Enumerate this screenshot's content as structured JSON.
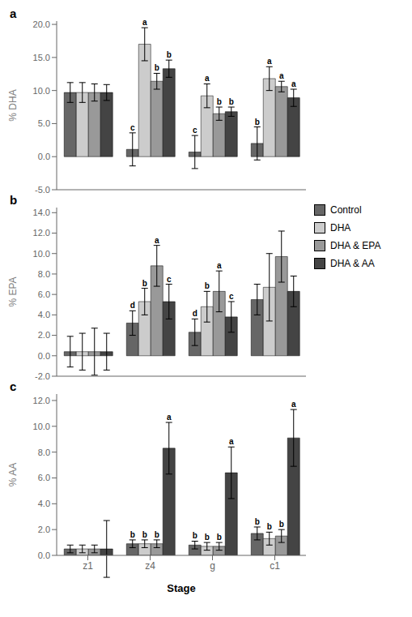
{
  "chart_data": [
    {
      "type": "bar",
      "title": "a",
      "ylabel": "% DHA",
      "tick_labels": "y",
      "categories": [
        "z1",
        "z4",
        "g",
        "c1"
      ],
      "ylim": [
        -5,
        20.5
      ],
      "yticks": [
        {
          "value": -5,
          "label": "-5.0"
        },
        {
          "value": 0,
          "label": "0.0"
        },
        {
          "value": 5,
          "label": "5.0"
        },
        {
          "value": 10,
          "label": "10.0"
        },
        {
          "value": 15,
          "label": "15.0"
        },
        {
          "value": 20,
          "label": "20.0"
        }
      ],
      "series": [
        {
          "name": "Control",
          "color": "#666666",
          "values": [
            9.7,
            1.1,
            0.7,
            2.0
          ],
          "errors": [
            1.5,
            2.5,
            2.5,
            2.5
          ],
          "sig_labels": [
            null,
            "c",
            "c",
            "b"
          ]
        },
        {
          "name": "DHA",
          "color": "#cccccc",
          "values": [
            9.7,
            17.0,
            9.2,
            11.8
          ],
          "errors": [
            1.5,
            2.5,
            1.8,
            1.8
          ],
          "sig_labels": [
            null,
            "a",
            "a",
            "a"
          ]
        },
        {
          "name": "DHA & EPA",
          "color": "#999999",
          "values": [
            9.7,
            11.4,
            6.5,
            10.6
          ],
          "errors": [
            1.3,
            1.2,
            1.0,
            0.8
          ],
          "sig_labels": [
            null,
            "b",
            "b",
            "a"
          ]
        },
        {
          "name": "DHA & AA",
          "color": "#444444",
          "values": [
            9.7,
            13.3,
            6.8,
            8.9
          ],
          "errors": [
            1.2,
            1.3,
            0.7,
            1.3
          ],
          "sig_labels": [
            null,
            "b",
            "b",
            "a"
          ]
        }
      ]
    },
    {
      "type": "bar",
      "title": "b",
      "ylabel": "% EPA",
      "tick_labels": "y",
      "legend": "right",
      "categories": [
        "z1",
        "z4",
        "g",
        "c1"
      ],
      "ylim": [
        -2,
        14.5
      ],
      "yticks": [
        {
          "value": -2,
          "label": "-2.0"
        },
        {
          "value": 0,
          "label": "0.0"
        },
        {
          "value": 2,
          "label": "2.0"
        },
        {
          "value": 4,
          "label": "4.0"
        },
        {
          "value": 6,
          "label": "6.0"
        },
        {
          "value": 8,
          "label": "8.0"
        },
        {
          "value": 10,
          "label": "10.0"
        },
        {
          "value": 12,
          "label": "12.0"
        },
        {
          "value": 14,
          "label": "14.0"
        }
      ],
      "series": [
        {
          "name": "Control",
          "color": "#666666",
          "values": [
            0.4,
            3.2,
            2.3,
            5.5
          ],
          "errors": [
            1.5,
            1.2,
            1.3,
            1.5
          ],
          "sig_labels": [
            null,
            "d",
            "d",
            null
          ]
        },
        {
          "name": "DHA",
          "color": "#cccccc",
          "values": [
            0.4,
            5.3,
            4.8,
            6.7
          ],
          "errors": [
            1.8,
            1.3,
            1.5,
            3.3
          ],
          "sig_labels": [
            null,
            "b",
            "b",
            null
          ]
        },
        {
          "name": "DHA & EPA",
          "color": "#999999",
          "values": [
            0.4,
            8.8,
            6.3,
            9.7
          ],
          "errors": [
            2.3,
            2.0,
            2.0,
            2.5
          ],
          "sig_labels": [
            null,
            "a",
            "a",
            null
          ]
        },
        {
          "name": "DHA & AA",
          "color": "#444444",
          "values": [
            0.4,
            5.3,
            3.8,
            6.3
          ],
          "errors": [
            1.8,
            1.7,
            1.5,
            1.5
          ],
          "sig_labels": [
            null,
            "c",
            "c",
            null
          ]
        }
      ]
    },
    {
      "type": "bar",
      "title": "c",
      "ylabel": "% AA",
      "xlabel": "Stage",
      "categories": [
        "z1",
        "z4",
        "g",
        "c1"
      ],
      "ylim": [
        0,
        12.5
      ],
      "yticks": [
        {
          "value": 0,
          "label": "0.0"
        },
        {
          "value": 2,
          "label": "2.0"
        },
        {
          "value": 4,
          "label": "4.0"
        },
        {
          "value": 6,
          "label": "6.0"
        },
        {
          "value": 8,
          "label": "8.0"
        },
        {
          "value": 10,
          "label": "10.0"
        },
        {
          "value": 12,
          "label": "12.0"
        }
      ],
      "series": [
        {
          "name": "Control",
          "color": "#666666",
          "values": [
            0.5,
            0.9,
            0.8,
            1.7
          ],
          "errors": [
            0.3,
            0.3,
            0.3,
            0.5
          ],
          "sig_labels": [
            null,
            "b",
            "b",
            "b"
          ]
        },
        {
          "name": "DHA",
          "color": "#cccccc",
          "values": [
            0.5,
            0.9,
            0.7,
            1.3
          ],
          "errors": [
            0.3,
            0.3,
            0.3,
            0.5
          ],
          "sig_labels": [
            null,
            "b",
            "b",
            "b"
          ]
        },
        {
          "name": "DHA & EPA",
          "color": "#999999",
          "values": [
            0.5,
            0.9,
            0.7,
            1.5
          ],
          "errors": [
            0.3,
            0.3,
            0.3,
            0.5
          ],
          "sig_labels": [
            null,
            "b",
            "b",
            "b"
          ]
        },
        {
          "name": "DHA & AA",
          "color": "#444444",
          "values": [
            0.5,
            8.3,
            6.4,
            9.1
          ],
          "errors": [
            2.2,
            2.0,
            2.0,
            2.2
          ],
          "sig_labels": [
            null,
            "a",
            "a",
            "a"
          ]
        }
      ]
    }
  ]
}
